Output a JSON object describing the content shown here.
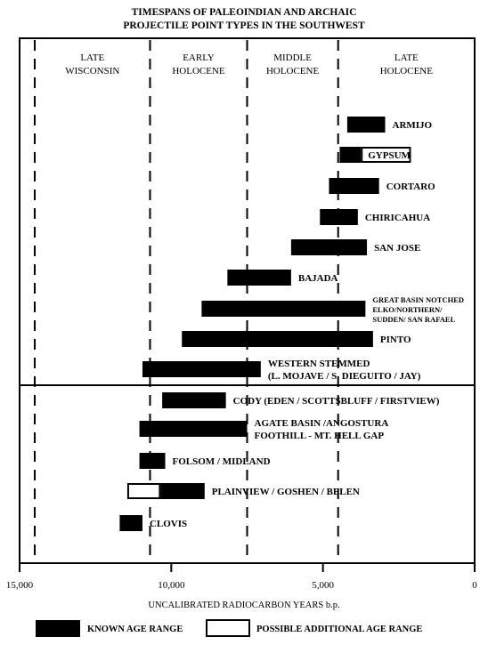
{
  "title_lines": [
    "TIMESPANS OF PALEOINDIAN AND ARCHAIC",
    "PROJECTILE POINT TYPES IN THE SOUTHWEST"
  ],
  "x_axis_label": "UNCALIBRATED RADIOCARBON YEARS b.p.",
  "legend": {
    "known": "KNOWN AGE RANGE",
    "possible": "POSSIBLE ADDITIONAL AGE RANGE"
  },
  "chart_data": {
    "type": "bar",
    "orientation": "horizontal-range",
    "title": "TIMESPANS OF PALEOINDIAN AND ARCHAIC PROJECTILE POINT TYPES IN THE SOUTHWEST",
    "xlabel": "UNCALIBRATED RADIOCARBON YEARS b.p.",
    "ylabel": "",
    "xlim": [
      15000,
      0
    ],
    "x_reversed": true,
    "x_ticks": [
      15000,
      10000,
      5000,
      0
    ],
    "x_tick_labels": [
      "15,000",
      "10,000",
      "5,000",
      "0"
    ],
    "period_boundaries": [
      14500,
      10700,
      7500,
      4500
    ],
    "periods": [
      {
        "lines": [
          "LATE",
          "WISCONSIN"
        ],
        "from": 14500,
        "to": 10700
      },
      {
        "lines": [
          "EARLY",
          "HOLOCENE"
        ],
        "from": 10700,
        "to": 7500
      },
      {
        "lines": [
          "MIDDLE",
          "HOLOCENE"
        ],
        "from": 7500,
        "to": 4500
      },
      {
        "lines": [
          "LATE",
          "HOLOCENE"
        ],
        "from": 4500,
        "to": 0
      }
    ],
    "series": [
      {
        "lines": [
          "ARMIJO"
        ],
        "small": false,
        "known": [
          4200,
          2950
        ]
      },
      {
        "lines": [
          "GYPSUM"
        ],
        "small": false,
        "known": [
          4450,
          3750
        ],
        "possible": [
          3750,
          2100
        ]
      },
      {
        "lines": [
          "CORTARO"
        ],
        "small": false,
        "known": [
          4800,
          3150
        ]
      },
      {
        "lines": [
          "CHIRICAHUA"
        ],
        "small": false,
        "known": [
          5100,
          3850
        ]
      },
      {
        "lines": [
          "SAN JOSE"
        ],
        "small": false,
        "known": [
          6050,
          3550
        ]
      },
      {
        "lines": [
          "BAJADA"
        ],
        "small": false,
        "known": [
          8150,
          6050
        ]
      },
      {
        "lines": [
          "GREAT BASIN NOTCHED",
          "ELKO/NORTHERN/",
          "SUDDEN/ SAN RAFAEL"
        ],
        "small": true,
        "known": [
          9000,
          3600
        ]
      },
      {
        "lines": [
          "PINTO"
        ],
        "small": false,
        "known": [
          9650,
          3350
        ]
      },
      {
        "lines": [
          "WESTERN STEMMED",
          "(L. MOJAVE / S. DIEGUITO / JAY)"
        ],
        "small": false,
        "known": [
          10950,
          7050
        ]
      },
      {
        "lines": [
          "CODY (EDEN / SCOTTSBLUFF / FIRSTVIEW)"
        ],
        "small": false,
        "known": [
          10300,
          8200
        ]
      },
      {
        "lines": [
          "AGATE BASIN /ANGOSTURA",
          "FOOTHILL - MT. HELL GAP"
        ],
        "small": false,
        "known": [
          11050,
          7500
        ]
      },
      {
        "lines": [
          "FOLSOM / MIDLAND"
        ],
        "small": false,
        "known": [
          11050,
          10200
        ]
      },
      {
        "lines": [
          "PLAINVIEW / GOSHEN / BELEN"
        ],
        "small": false,
        "possible": [
          11450,
          10350
        ],
        "known": [
          10350,
          8900
        ]
      },
      {
        "lines": [
          "CLOVIS"
        ],
        "small": false,
        "known": [
          11700,
          10950
        ]
      }
    ]
  }
}
